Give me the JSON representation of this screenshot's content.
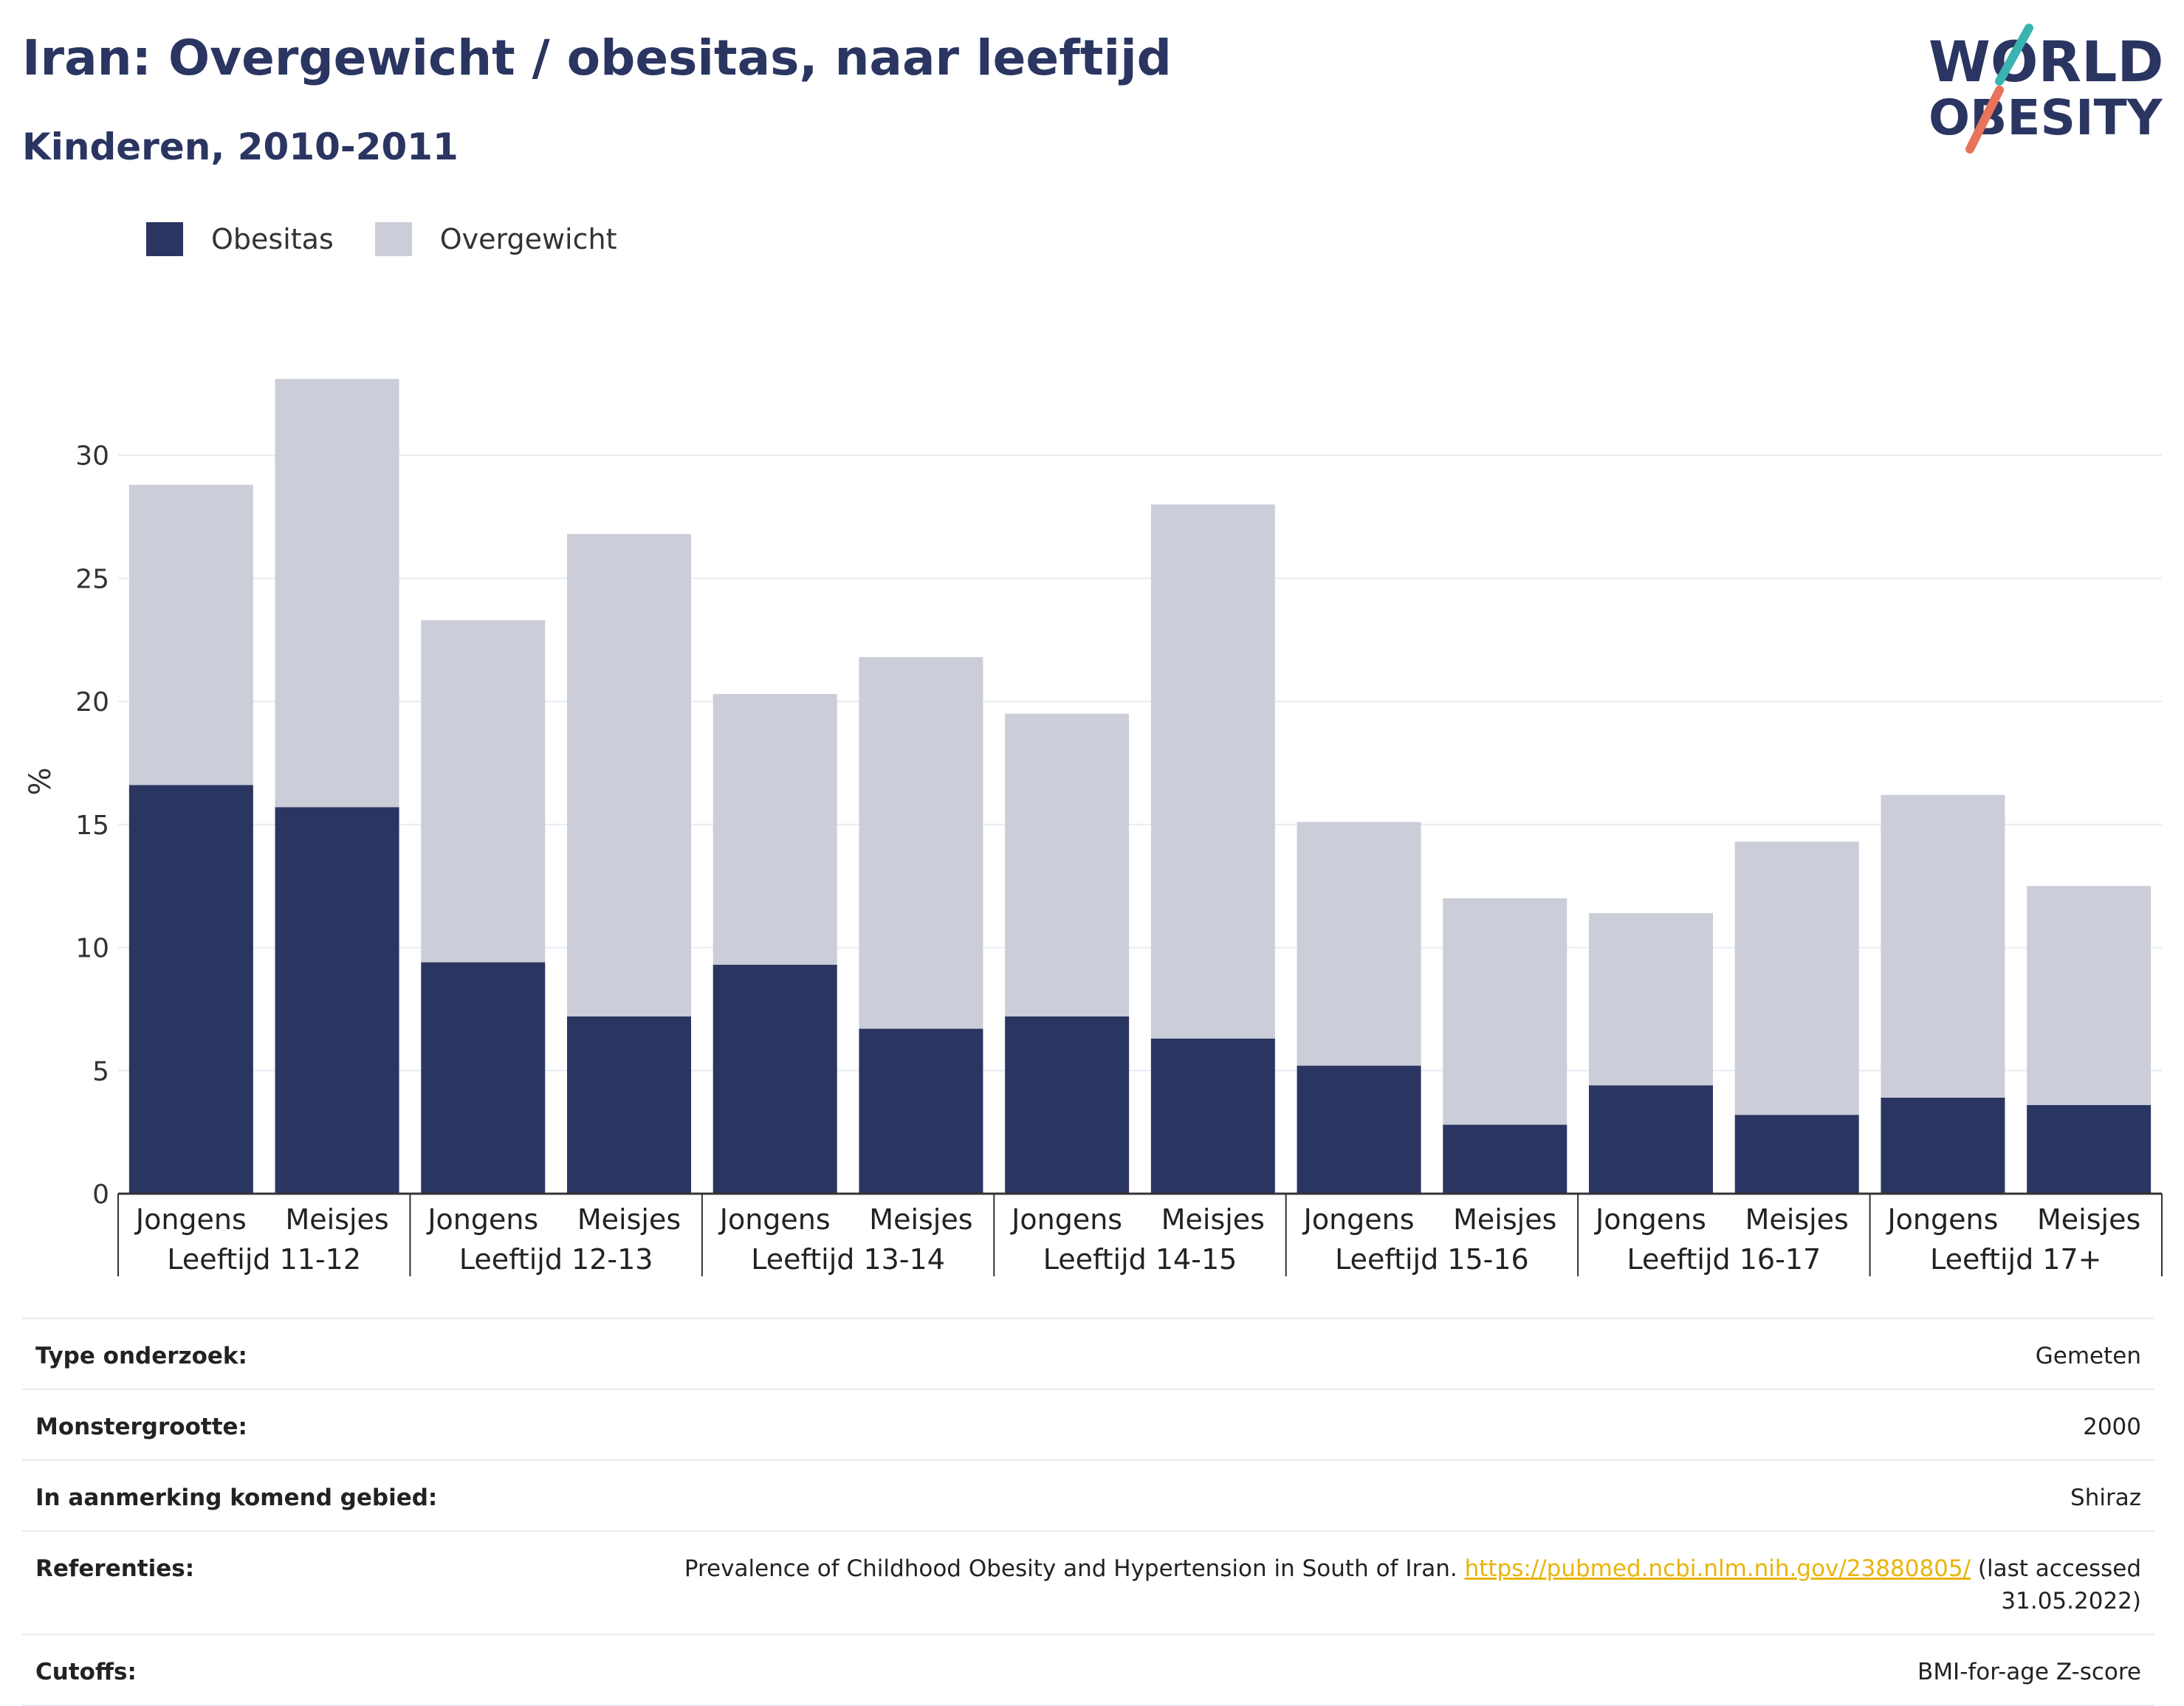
{
  "header": {
    "title": "Iran: Overgewicht / obesitas, naar leeftijd",
    "subtitle": "Kinderen, 2010-2011"
  },
  "logo": {
    "line1": "WORLD",
    "line2": "OBESITY",
    "teal": "#3bb3b0",
    "coral": "#e8735a"
  },
  "colors": {
    "obesity": "#2a3561",
    "overweight": "#cbcdd8",
    "grid": "#e8ebf3",
    "axis": "#333333"
  },
  "chart_data": {
    "type": "bar",
    "stacked": true,
    "ylabel": "%",
    "ylim": [
      0,
      33.5
    ],
    "yticks": [
      0,
      5,
      10,
      15,
      20,
      25,
      30
    ],
    "grid": true,
    "legend_position": "top-left",
    "groups": [
      {
        "label": "Leeftijd 11-12",
        "bars": [
          {
            "label": "Jongens",
            "obesity": 16.6,
            "overweight": 12.2
          },
          {
            "label": "Meisjes",
            "obesity": 15.7,
            "overweight": 17.4
          }
        ]
      },
      {
        "label": "Leeftijd 12-13",
        "bars": [
          {
            "label": "Jongens",
            "obesity": 9.4,
            "overweight": 13.9
          },
          {
            "label": "Meisjes",
            "obesity": 7.2,
            "overweight": 19.6
          }
        ]
      },
      {
        "label": "Leeftijd 13-14",
        "bars": [
          {
            "label": "Jongens",
            "obesity": 9.3,
            "overweight": 11.0
          },
          {
            "label": "Meisjes",
            "obesity": 6.7,
            "overweight": 15.1
          }
        ]
      },
      {
        "label": "Leeftijd 14-15",
        "bars": [
          {
            "label": "Jongens",
            "obesity": 7.2,
            "overweight": 12.3
          },
          {
            "label": "Meisjes",
            "obesity": 6.3,
            "overweight": 21.7
          }
        ]
      },
      {
        "label": "Leeftijd 15-16",
        "bars": [
          {
            "label": "Jongens",
            "obesity": 5.2,
            "overweight": 9.9
          },
          {
            "label": "Meisjes",
            "obesity": 2.8,
            "overweight": 9.2
          }
        ]
      },
      {
        "label": "Leeftijd 16-17",
        "bars": [
          {
            "label": "Jongens",
            "obesity": 4.4,
            "overweight": 7.0
          },
          {
            "label": "Meisjes",
            "obesity": 3.2,
            "overweight": 11.1
          }
        ]
      },
      {
        "label": "Leeftijd 17+",
        "bars": [
          {
            "label": "Jongens",
            "obesity": 3.9,
            "overweight": 12.3
          },
          {
            "label": "Meisjes",
            "obesity": 3.6,
            "overweight": 8.9
          }
        ]
      }
    ],
    "series": [
      {
        "key": "obesity",
        "name": "Obesitas",
        "color": "#2a3561"
      },
      {
        "key": "overweight",
        "name": "Overgewicht",
        "color": "#cbcdd8"
      }
    ]
  },
  "info": {
    "type_label": "Type onderzoek:",
    "type_value": "Gemeten",
    "sample_label": "Monstergrootte:",
    "sample_value": "2000",
    "area_label": "In aanmerking komend gebied:",
    "area_value": "Shiraz",
    "ref_label": "Referenties:",
    "ref_text": "Prevalence of Childhood Obesity and Hypertension in South of Iran.",
    "ref_link": "https://pubmed.ncbi.nlm.nih.gov/23880805/",
    "ref_suffix": "(last accessed 31.05.2022)",
    "cutoffs_label": "Cutoffs:",
    "cutoffs_value": "BMI-for-age Z-score"
  }
}
